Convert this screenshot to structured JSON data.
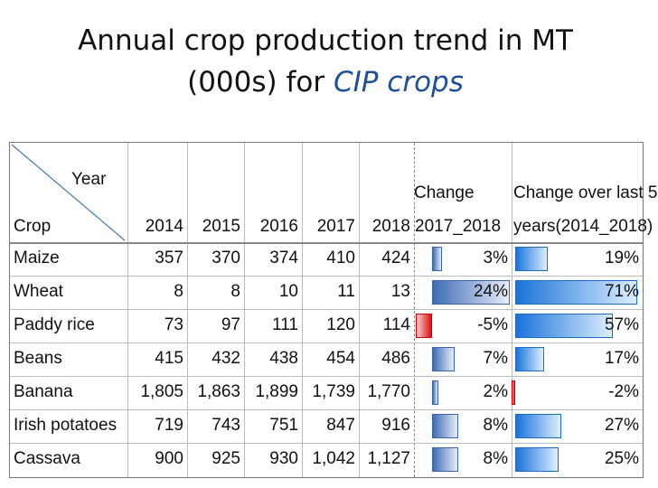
{
  "title": {
    "line1": "Annual crop production trend in MT",
    "line2_plain": "(000s) for ",
    "line2_highlight": "CIP crops"
  },
  "table": {
    "corner_year": "Year",
    "corner_crop": "Crop",
    "years": [
      "2014",
      "2015",
      "2016",
      "2017",
      "2018"
    ],
    "change_header_top": "Change",
    "change_header_bottom": "2017_2018",
    "change5_header_top": "Change over last 5",
    "change5_header_bottom": "years(2014_2018)",
    "rows": [
      {
        "crop": "Maize",
        "values": [
          "357",
          "370",
          "374",
          "410",
          "424"
        ],
        "change": "3%",
        "change_val": 3,
        "change5": "19%",
        "change5_val": 19
      },
      {
        "crop": "Wheat",
        "values": [
          "8",
          "8",
          "10",
          "11",
          "13"
        ],
        "change": "24%",
        "change_val": 24,
        "change5": "71%",
        "change5_val": 71
      },
      {
        "crop": "Paddy rice",
        "values": [
          "73",
          "97",
          "111",
          "120",
          "114"
        ],
        "change": "-5%",
        "change_val": -5,
        "change5": "57%",
        "change5_val": 57
      },
      {
        "crop": "Beans",
        "values": [
          "415",
          "432",
          "438",
          "454",
          "486"
        ],
        "change": "7%",
        "change_val": 7,
        "change5": "17%",
        "change5_val": 17
      },
      {
        "crop": "Banana",
        "values": [
          "1,805",
          "1,863",
          "1,899",
          "1,739",
          "1,770"
        ],
        "change": "2%",
        "change_val": 2,
        "change5": "-2%",
        "change5_val": -2
      },
      {
        "crop": "Irish potatoes",
        "values": [
          "719",
          "743",
          "751",
          "847",
          "916"
        ],
        "change": "8%",
        "change_val": 8,
        "change5": "27%",
        "change5_val": 27
      },
      {
        "crop": "Cassava",
        "values": [
          "900",
          "925",
          "930",
          "1,042",
          "1,127"
        ],
        "change": "8%",
        "change_val": 8,
        "change5": "25%",
        "change5_val": 25
      }
    ]
  }
}
